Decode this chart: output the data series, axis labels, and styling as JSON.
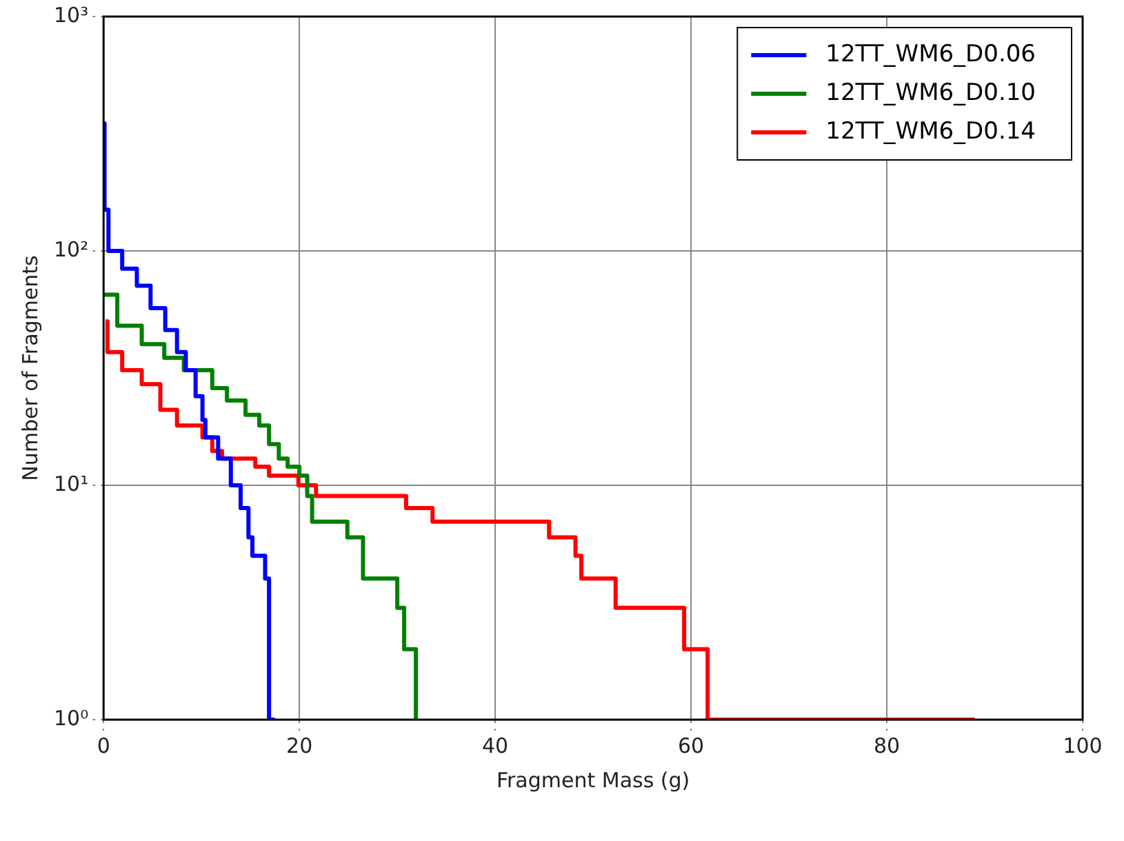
{
  "chart_data": {
    "type": "step",
    "xlabel": "Fragment Mass (g)",
    "ylabel": "Number of Fragments",
    "log": "y",
    "grid": true,
    "legend": "top right",
    "xlim": [
      0,
      100
    ],
    "xticks": [
      0,
      20,
      40,
      60,
      80,
      100
    ],
    "ylim": [
      1,
      1000
    ],
    "yticks": [
      {
        "value": 1,
        "label": "10⁰"
      },
      {
        "value": 10,
        "label": "10¹"
      },
      {
        "value": 100,
        "label": "10²"
      },
      {
        "value": 1000,
        "label": "10³"
      }
    ],
    "series": [
      {
        "name": "12TT_WM6_D0.06",
        "color": "#0000ff",
        "x": [
          0,
          0.1,
          0.5,
          1.9,
          3.4,
          4.8,
          6.3,
          7.5,
          8.4,
          9.4,
          10.1,
          10.4,
          11.7,
          13,
          14,
          14.8,
          15.2,
          16.5,
          16.9,
          17.5
        ],
        "values": [
          350,
          150,
          100,
          84,
          71,
          57,
          46,
          37,
          31,
          24,
          19,
          16,
          13,
          10,
          8,
          6,
          5,
          4,
          1,
          1
        ]
      },
      {
        "name": "12TT_WM6_D0.10",
        "color": "#008000",
        "x": [
          0,
          1.4,
          3.9,
          6.2,
          8.2,
          11.1,
          12.6,
          14.5,
          15.9,
          16.9,
          17.9,
          18.8,
          20,
          20.8,
          21.3,
          24.9,
          26.5,
          30,
          30.7,
          31.9,
          32
        ],
        "values": [
          65,
          48,
          40,
          35,
          31,
          26,
          23,
          20,
          18,
          15,
          13,
          12,
          11,
          9,
          7,
          6,
          4,
          3,
          2,
          1,
          1
        ]
      },
      {
        "name": "12TT_WM6_D0.14",
        "color": "#ff0000",
        "x": [
          0.2,
          0.4,
          1.9,
          3.9,
          5.8,
          7.5,
          10.1,
          11.1,
          12.1,
          15.5,
          16.9,
          19.9,
          21.7,
          30.9,
          33.6,
          45.5,
          48.2,
          48.8,
          52.3,
          59.3,
          61.7,
          89
        ],
        "values": [
          50,
          37,
          31,
          27,
          21,
          18,
          16,
          14,
          13,
          12,
          11,
          10,
          9,
          8,
          7,
          6,
          5,
          4,
          3,
          2,
          1,
          1
        ]
      }
    ]
  }
}
